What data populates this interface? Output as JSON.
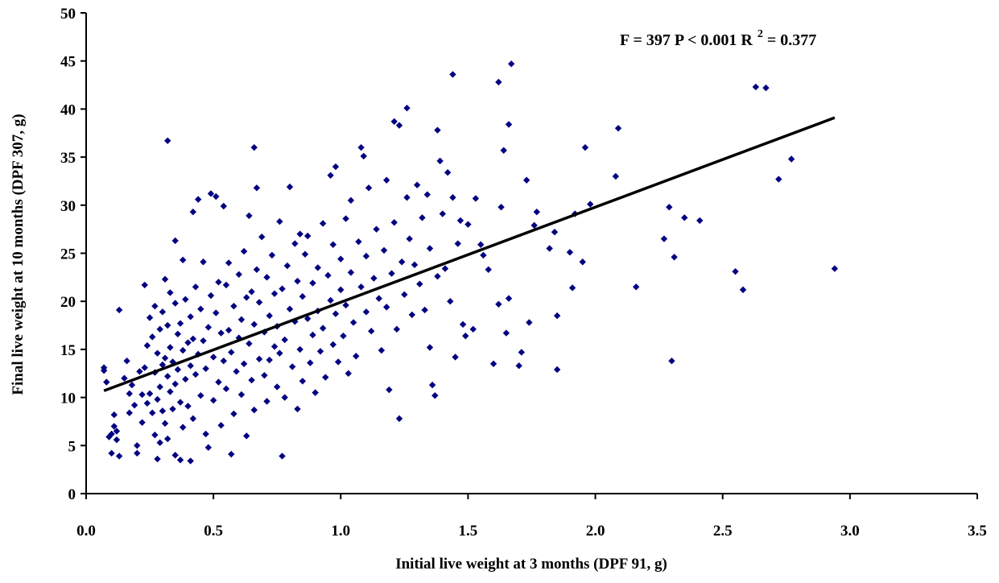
{
  "chart_data": {
    "type": "scatter",
    "xlabel": "Initial live weight at 3 months (DPF 91, g)",
    "ylabel": "Final live weight at 10 months (DPF 307, g)",
    "xlim": [
      0,
      3.5
    ],
    "ylim": [
      0,
      50
    ],
    "x_ticks": [
      "0.0",
      "0.5",
      "1.0",
      "1.5",
      "2.0",
      "2.5",
      "3.0",
      "3.5"
    ],
    "y_ticks": [
      "0",
      "5",
      "10",
      "15",
      "20",
      "25",
      "30",
      "35",
      "40",
      "45",
      "50"
    ],
    "annotation": {
      "text": "F = 397 P < 0.001 R",
      "superscript": "2",
      "suffix": " = 0.377"
    },
    "grid": false,
    "legend": "none",
    "marker_color": "#000080",
    "trendline": {
      "x": [
        0.07,
        2.94
      ],
      "y": [
        10.7,
        39.1
      ],
      "color": "#000000"
    },
    "points": [
      [
        0.07,
        13.1
      ],
      [
        0.07,
        12.8
      ],
      [
        0.08,
        11.6
      ],
      [
        0.09,
        5.9
      ],
      [
        0.1,
        4.2
      ],
      [
        0.1,
        6.2
      ],
      [
        0.11,
        8.2
      ],
      [
        0.11,
        7.0
      ],
      [
        0.12,
        5.6
      ],
      [
        0.12,
        6.5
      ],
      [
        0.13,
        19.1
      ],
      [
        0.13,
        3.9
      ],
      [
        0.15,
        12.0
      ],
      [
        0.16,
        13.8
      ],
      [
        0.17,
        10.4
      ],
      [
        0.17,
        8.4
      ],
      [
        0.18,
        11.3
      ],
      [
        0.19,
        9.2
      ],
      [
        0.2,
        5.0
      ],
      [
        0.2,
        4.2
      ],
      [
        0.21,
        12.7
      ],
      [
        0.22,
        10.3
      ],
      [
        0.22,
        7.4
      ],
      [
        0.23,
        21.7
      ],
      [
        0.23,
        13.1
      ],
      [
        0.24,
        15.4
      ],
      [
        0.24,
        9.4
      ],
      [
        0.25,
        18.3
      ],
      [
        0.25,
        10.4
      ],
      [
        0.26,
        8.4
      ],
      [
        0.26,
        16.3
      ],
      [
        0.27,
        19.5
      ],
      [
        0.27,
        12.6
      ],
      [
        0.27,
        6.1
      ],
      [
        0.28,
        14.6
      ],
      [
        0.28,
        9.8
      ],
      [
        0.28,
        3.6
      ],
      [
        0.29,
        17.1
      ],
      [
        0.29,
        11.1
      ],
      [
        0.29,
        5.3
      ],
      [
        0.3,
        18.9
      ],
      [
        0.3,
        13.4
      ],
      [
        0.3,
        8.6
      ],
      [
        0.31,
        22.3
      ],
      [
        0.31,
        14.1
      ],
      [
        0.31,
        7.3
      ],
      [
        0.32,
        36.7
      ],
      [
        0.32,
        17.5
      ],
      [
        0.32,
        12.2
      ],
      [
        0.32,
        5.7
      ],
      [
        0.33,
        20.9
      ],
      [
        0.33,
        15.2
      ],
      [
        0.33,
        10.6
      ],
      [
        0.34,
        13.7
      ],
      [
        0.34,
        8.8
      ],
      [
        0.35,
        26.3
      ],
      [
        0.35,
        19.8
      ],
      [
        0.35,
        11.4
      ],
      [
        0.35,
        4.0
      ],
      [
        0.36,
        16.6
      ],
      [
        0.36,
        12.9
      ],
      [
        0.37,
        3.5
      ],
      [
        0.37,
        9.5
      ],
      [
        0.37,
        17.7
      ],
      [
        0.38,
        24.3
      ],
      [
        0.38,
        14.9
      ],
      [
        0.38,
        6.9
      ],
      [
        0.39,
        20.2
      ],
      [
        0.39,
        11.9
      ],
      [
        0.4,
        15.7
      ],
      [
        0.4,
        9.1
      ],
      [
        0.41,
        18.4
      ],
      [
        0.41,
        13.3
      ],
      [
        0.41,
        3.4
      ],
      [
        0.42,
        29.3
      ],
      [
        0.42,
        16.1
      ],
      [
        0.42,
        7.8
      ],
      [
        0.43,
        12.4
      ],
      [
        0.43,
        21.5
      ],
      [
        0.44,
        30.6
      ],
      [
        0.44,
        14.5
      ],
      [
        0.45,
        19.2
      ],
      [
        0.45,
        10.2
      ],
      [
        0.46,
        24.1
      ],
      [
        0.46,
        15.9
      ],
      [
        0.47,
        13.0
      ],
      [
        0.47,
        6.2
      ],
      [
        0.48,
        17.3
      ],
      [
        0.48,
        4.8
      ],
      [
        0.49,
        31.2
      ],
      [
        0.49,
        20.6
      ],
      [
        0.5,
        14.2
      ],
      [
        0.5,
        9.7
      ],
      [
        0.51,
        30.9
      ],
      [
        0.51,
        18.8
      ],
      [
        0.52,
        11.6
      ],
      [
        0.52,
        22.0
      ],
      [
        0.53,
        16.7
      ],
      [
        0.53,
        7.1
      ],
      [
        0.54,
        29.9
      ],
      [
        0.54,
        13.8
      ],
      [
        0.55,
        21.7
      ],
      [
        0.55,
        10.9
      ],
      [
        0.56,
        24.0
      ],
      [
        0.56,
        17.0
      ],
      [
        0.57,
        4.1
      ],
      [
        0.57,
        14.7
      ],
      [
        0.58,
        19.5
      ],
      [
        0.58,
        8.3
      ],
      [
        0.59,
        12.7
      ],
      [
        0.6,
        22.8
      ],
      [
        0.6,
        16.2
      ],
      [
        0.61,
        10.3
      ],
      [
        0.61,
        18.1
      ],
      [
        0.62,
        25.2
      ],
      [
        0.62,
        13.5
      ],
      [
        0.63,
        20.4
      ],
      [
        0.63,
        6.0
      ],
      [
        0.64,
        15.6
      ],
      [
        0.64,
        28.9
      ],
      [
        0.65,
        11.8
      ],
      [
        0.65,
        21.0
      ],
      [
        0.66,
        36.0
      ],
      [
        0.66,
        17.6
      ],
      [
        0.66,
        8.7
      ],
      [
        0.67,
        31.8
      ],
      [
        0.67,
        23.3
      ],
      [
        0.68,
        14.0
      ],
      [
        0.68,
        19.9
      ],
      [
        0.69,
        26.7
      ],
      [
        0.7,
        12.3
      ],
      [
        0.7,
        16.8
      ],
      [
        0.71,
        22.5
      ],
      [
        0.71,
        9.6
      ],
      [
        0.72,
        18.5
      ],
      [
        0.72,
        13.9
      ],
      [
        0.73,
        24.8
      ],
      [
        0.74,
        15.3
      ],
      [
        0.74,
        20.8
      ],
      [
        0.75,
        11.1
      ],
      [
        0.75,
        17.4
      ],
      [
        0.76,
        28.3
      ],
      [
        0.76,
        14.6
      ],
      [
        0.77,
        3.9
      ],
      [
        0.77,
        21.3
      ],
      [
        0.78,
        16.0
      ],
      [
        0.78,
        10.0
      ],
      [
        0.79,
        23.7
      ],
      [
        0.8,
        19.2
      ],
      [
        0.8,
        31.9
      ],
      [
        0.81,
        13.2
      ],
      [
        0.82,
        26.0
      ],
      [
        0.82,
        17.9
      ],
      [
        0.83,
        22.1
      ],
      [
        0.83,
        8.8
      ],
      [
        0.84,
        27.0
      ],
      [
        0.84,
        15.0
      ],
      [
        0.85,
        20.5
      ],
      [
        0.85,
        11.7
      ],
      [
        0.86,
        24.9
      ],
      [
        0.87,
        18.2
      ],
      [
        0.87,
        26.8
      ],
      [
        0.88,
        13.6
      ],
      [
        0.89,
        21.9
      ],
      [
        0.89,
        16.5
      ],
      [
        0.9,
        10.5
      ],
      [
        0.91,
        23.5
      ],
      [
        0.91,
        19.0
      ],
      [
        0.92,
        14.8
      ],
      [
        0.93,
        28.1
      ],
      [
        0.93,
        17.2
      ],
      [
        0.94,
        12.1
      ],
      [
        0.95,
        22.7
      ],
      [
        0.96,
        33.1
      ],
      [
        0.96,
        20.1
      ],
      [
        0.97,
        25.9
      ],
      [
        0.97,
        15.5
      ],
      [
        0.98,
        34.0
      ],
      [
        0.98,
        18.7
      ],
      [
        0.99,
        13.7
      ],
      [
        1.0,
        24.4
      ],
      [
        1.0,
        21.2
      ],
      [
        1.01,
        16.4
      ],
      [
        1.02,
        28.6
      ],
      [
        1.02,
        19.6
      ],
      [
        1.03,
        12.5
      ],
      [
        1.04,
        23.0
      ],
      [
        1.04,
        30.5
      ],
      [
        1.05,
        17.8
      ],
      [
        1.06,
        14.3
      ],
      [
        1.07,
        26.2
      ],
      [
        1.08,
        36.0
      ],
      [
        1.08,
        21.5
      ],
      [
        1.09,
        35.1
      ],
      [
        1.1,
        18.9
      ],
      [
        1.1,
        24.7
      ],
      [
        1.11,
        31.8
      ],
      [
        1.12,
        16.9
      ],
      [
        1.13,
        22.4
      ],
      [
        1.14,
        27.5
      ],
      [
        1.15,
        20.3
      ],
      [
        1.16,
        14.9
      ],
      [
        1.17,
        25.3
      ],
      [
        1.18,
        32.6
      ],
      [
        1.18,
        19.4
      ],
      [
        1.19,
        10.8
      ],
      [
        1.2,
        22.9
      ],
      [
        1.21,
        38.7
      ],
      [
        1.21,
        28.2
      ],
      [
        1.22,
        17.1
      ],
      [
        1.23,
        7.8
      ],
      [
        1.23,
        38.3
      ],
      [
        1.24,
        24.1
      ],
      [
        1.25,
        20.7
      ],
      [
        1.26,
        40.1
      ],
      [
        1.26,
        30.8
      ],
      [
        1.27,
        26.5
      ],
      [
        1.28,
        18.6
      ],
      [
        1.29,
        23.8
      ],
      [
        1.3,
        32.1
      ],
      [
        1.31,
        21.8
      ],
      [
        1.32,
        28.7
      ],
      [
        1.33,
        19.1
      ],
      [
        1.34,
        31.1
      ],
      [
        1.35,
        15.2
      ],
      [
        1.35,
        25.5
      ],
      [
        1.36,
        11.3
      ],
      [
        1.37,
        10.2
      ],
      [
        1.38,
        37.8
      ],
      [
        1.38,
        22.6
      ],
      [
        1.39,
        34.6
      ],
      [
        1.4,
        29.1
      ],
      [
        1.41,
        23.4
      ],
      [
        1.42,
        33.4
      ],
      [
        1.43,
        20.0
      ],
      [
        1.44,
        43.6
      ],
      [
        1.44,
        30.8
      ],
      [
        1.45,
        14.2
      ],
      [
        1.46,
        26.0
      ],
      [
        1.47,
        28.4
      ],
      [
        1.48,
        17.6
      ],
      [
        1.49,
        16.4
      ],
      [
        1.5,
        28.0
      ],
      [
        1.52,
        17.1
      ],
      [
        1.53,
        30.7
      ],
      [
        1.55,
        25.9
      ],
      [
        1.56,
        24.8
      ],
      [
        1.58,
        23.3
      ],
      [
        1.6,
        13.5
      ],
      [
        1.62,
        42.8
      ],
      [
        1.62,
        19.7
      ],
      [
        1.63,
        29.8
      ],
      [
        1.64,
        35.7
      ],
      [
        1.65,
        16.7
      ],
      [
        1.66,
        38.4
      ],
      [
        1.66,
        20.3
      ],
      [
        1.67,
        44.7
      ],
      [
        1.7,
        13.3
      ],
      [
        1.71,
        14.7
      ],
      [
        1.73,
        32.6
      ],
      [
        1.74,
        17.8
      ],
      [
        1.76,
        27.9
      ],
      [
        1.77,
        29.3
      ],
      [
        1.82,
        25.5
      ],
      [
        1.84,
        27.2
      ],
      [
        1.85,
        12.9
      ],
      [
        1.85,
        18.5
      ],
      [
        1.9,
        25.1
      ],
      [
        1.91,
        21.4
      ],
      [
        1.92,
        29.1
      ],
      [
        1.95,
        24.1
      ],
      [
        1.96,
        36.0
      ],
      [
        1.98,
        30.1
      ],
      [
        2.08,
        33.0
      ],
      [
        2.09,
        38.0
      ],
      [
        2.16,
        21.5
      ],
      [
        2.27,
        26.5
      ],
      [
        2.29,
        29.8
      ],
      [
        2.3,
        13.8
      ],
      [
        2.31,
        24.6
      ],
      [
        2.35,
        28.7
      ],
      [
        2.41,
        28.4
      ],
      [
        2.55,
        23.1
      ],
      [
        2.58,
        21.2
      ],
      [
        2.63,
        42.3
      ],
      [
        2.67,
        42.2
      ],
      [
        2.72,
        32.7
      ],
      [
        2.77,
        34.8
      ],
      [
        2.94,
        23.4
      ]
    ]
  }
}
